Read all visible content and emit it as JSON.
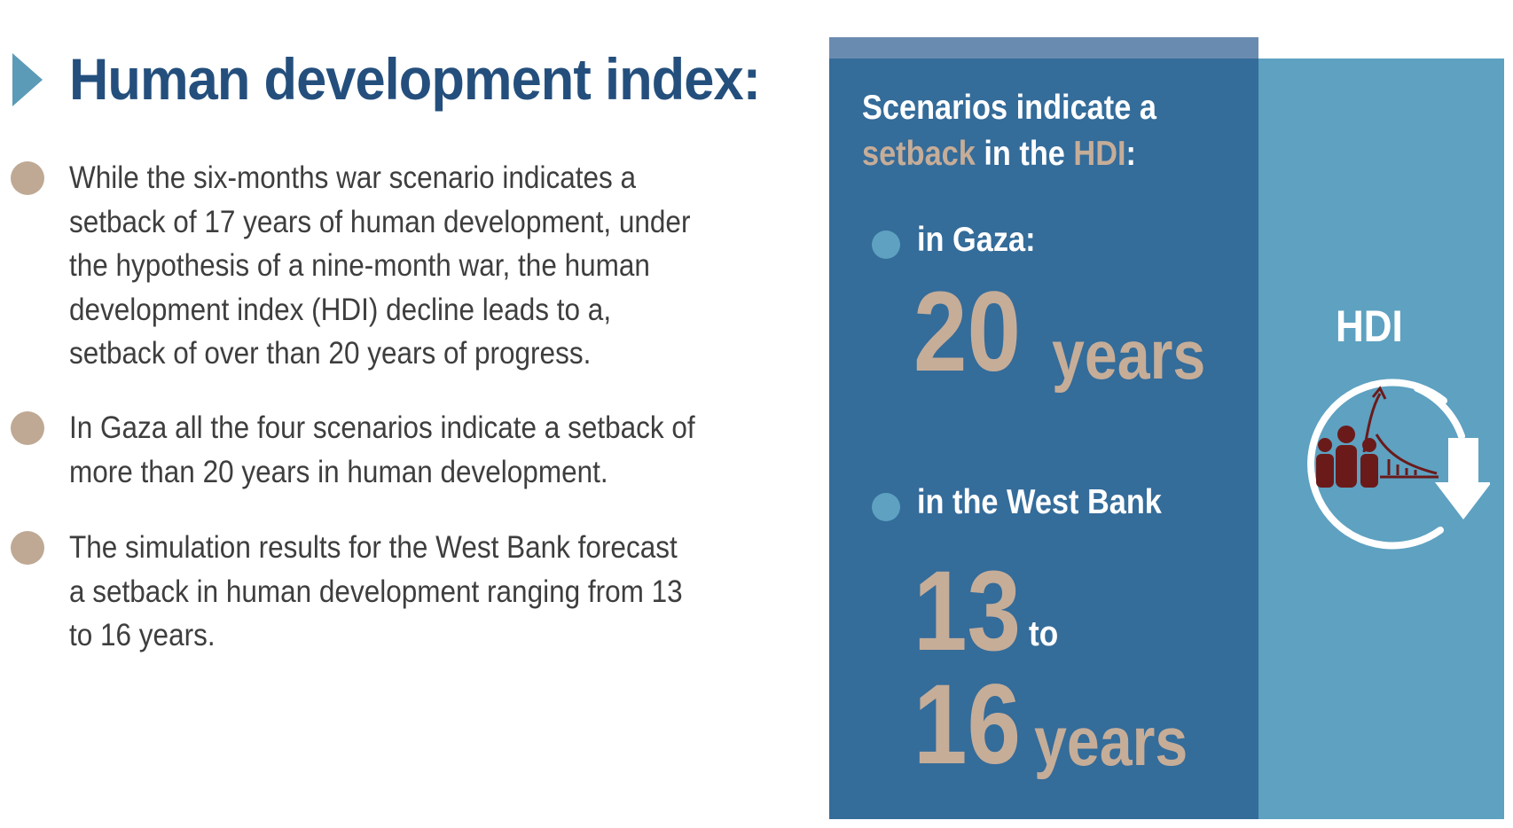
{
  "title": "Human development index:",
  "bullets": [
    {
      "text": "While the six-months war scenario indicates a setback of 17 years of human development, under the hypothesis of a nine-month war, the human development index (HDI) decline leads to a, setback of over than 20 years of progress."
    },
    {
      "text": "In Gaza all the four scenarios indicate a setback of more than 20 years in human development."
    },
    {
      "text": "The simulation results for the West Bank forecast a setback in human development ranging from 13 to 16 years."
    }
  ],
  "panel": {
    "heading_line1": "Scenarios indicate a",
    "heading_word_setback": "setback",
    "heading_in_the": " in the ",
    "heading_word_hdi": "HDI",
    "heading_colon": ":",
    "gaza": {
      "label": "in Gaza:",
      "number": "20",
      "unit": "years"
    },
    "west_bank": {
      "label": "in the West Bank",
      "from": "13",
      "to_word": "to",
      "upto": "16",
      "unit": "years"
    },
    "hdi_label": "HDI"
  },
  "colors": {
    "title_blue": "#244f7d",
    "marker_blue": "#5b9bb8",
    "bullet_tan": "#bfa994",
    "body_text": "#3e3e3e",
    "panel_dark": "#346c9a",
    "panel_light": "#5ea1c1",
    "panel_strip": "#6a8bb0",
    "accent_tan": "#c6ad98",
    "icon_maroon": "#6b1a1a"
  }
}
